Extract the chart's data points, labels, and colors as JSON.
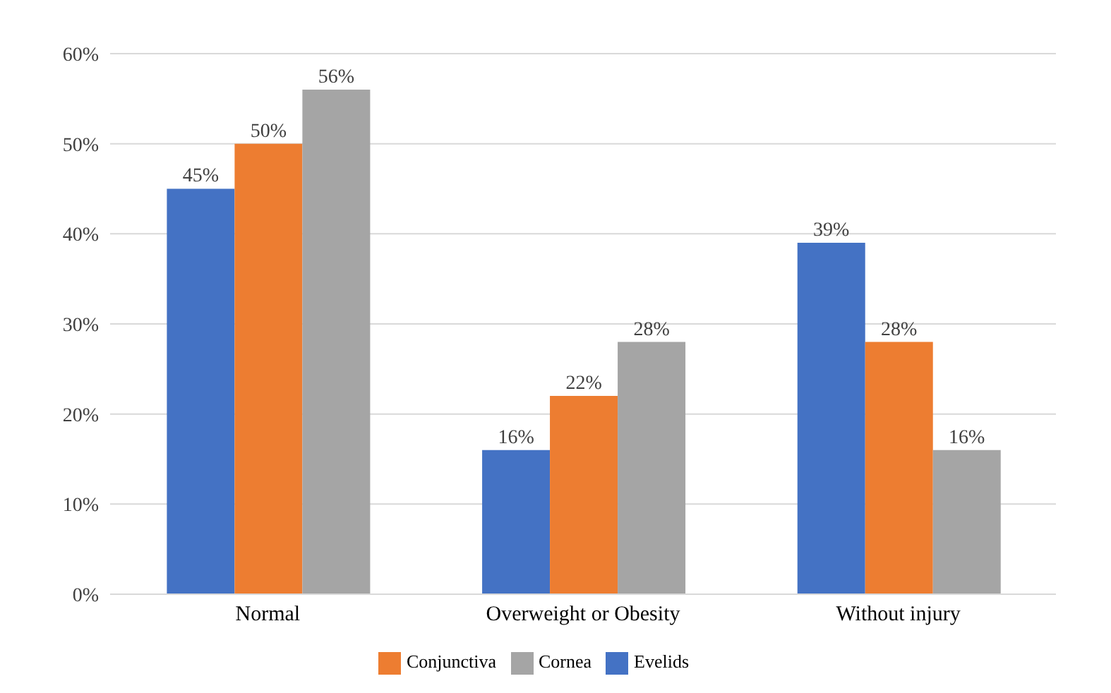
{
  "chart_data": {
    "type": "bar",
    "categories": [
      "Normal",
      "Overweight or Obesity",
      "Without injury"
    ],
    "series": [
      {
        "name": "Evelids",
        "color": "#4472c4",
        "values": [
          45,
          16,
          39
        ],
        "value_labels": [
          "45%",
          "16%",
          "39%"
        ]
      },
      {
        "name": "Conjunctiva",
        "color": "#ed7d31",
        "values": [
          50,
          22,
          28
        ],
        "value_labels": [
          "50%",
          "22%",
          "28%"
        ]
      },
      {
        "name": "Cornea",
        "color": "#a5a5a5",
        "values": [
          56,
          28,
          16
        ],
        "value_labels": [
          "56%",
          "28%",
          "16%"
        ]
      }
    ],
    "ylim": [
      0,
      60
    ],
    "yticks": [
      {
        "value": 0,
        "label": "0%"
      },
      {
        "value": 10,
        "label": "10%"
      },
      {
        "value": 20,
        "label": "20%"
      },
      {
        "value": 30,
        "label": "30%"
      },
      {
        "value": 40,
        "label": "40%"
      },
      {
        "value": 50,
        "label": "50%"
      },
      {
        "value": 60,
        "label": "60%"
      }
    ],
    "grid": "y",
    "legend": "bottom"
  }
}
